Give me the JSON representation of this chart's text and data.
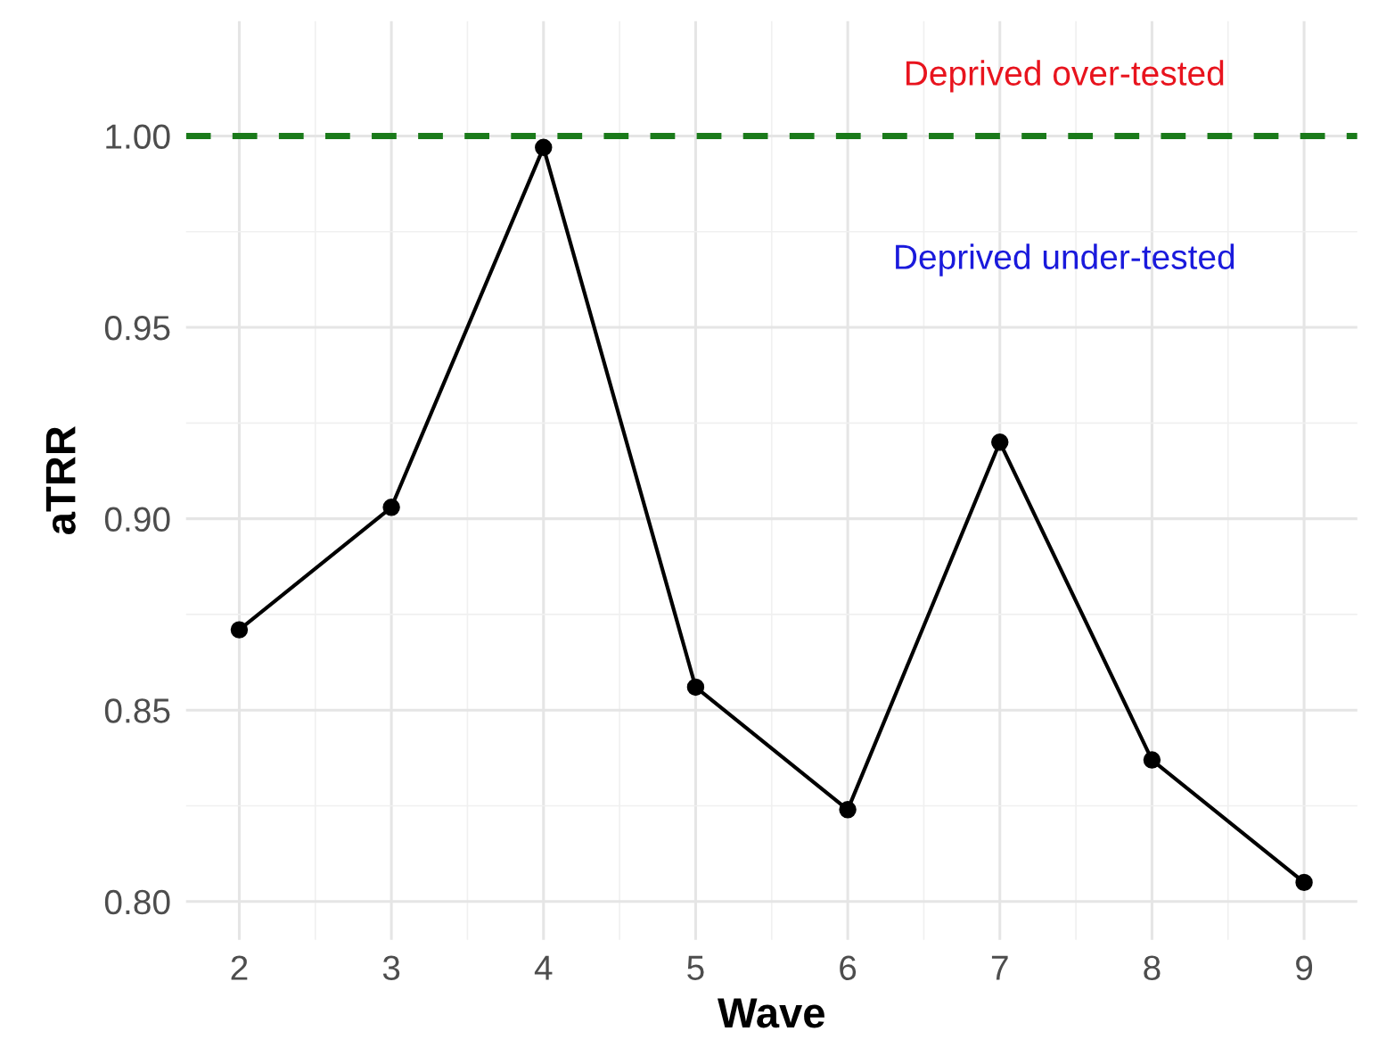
{
  "chart_data": {
    "type": "line",
    "xlabel": "Wave",
    "ylabel": "aTRR",
    "x": [
      2,
      3,
      4,
      5,
      6,
      7,
      8,
      9
    ],
    "series": [
      {
        "color": "#000000",
        "values": [
          0.871,
          0.903,
          0.997,
          0.856,
          0.824,
          0.92,
          0.837,
          0.805
        ]
      }
    ],
    "marker": "circle",
    "line_style": "solid",
    "xlim": [
      1.65,
      9.35
    ],
    "xticks": [
      2,
      3,
      4,
      5,
      6,
      7,
      8,
      9
    ],
    "ylim": [
      0.79,
      1.03
    ],
    "yticks": [
      {
        "value": 0.8,
        "label": "0.80"
      },
      {
        "value": 0.85,
        "label": "0.85"
      },
      {
        "value": 0.9,
        "label": "0.90"
      },
      {
        "value": 0.95,
        "label": "0.95"
      },
      {
        "value": 1.0,
        "label": "1.00"
      }
    ],
    "ref_lines": [
      {
        "axis": "y",
        "value": 1.0,
        "color": "#1a7a1a",
        "line_style": "dashed"
      }
    ],
    "annotations": [
      "Deprived over-tested",
      "Deprived under-tested"
    ],
    "grid": true
  }
}
